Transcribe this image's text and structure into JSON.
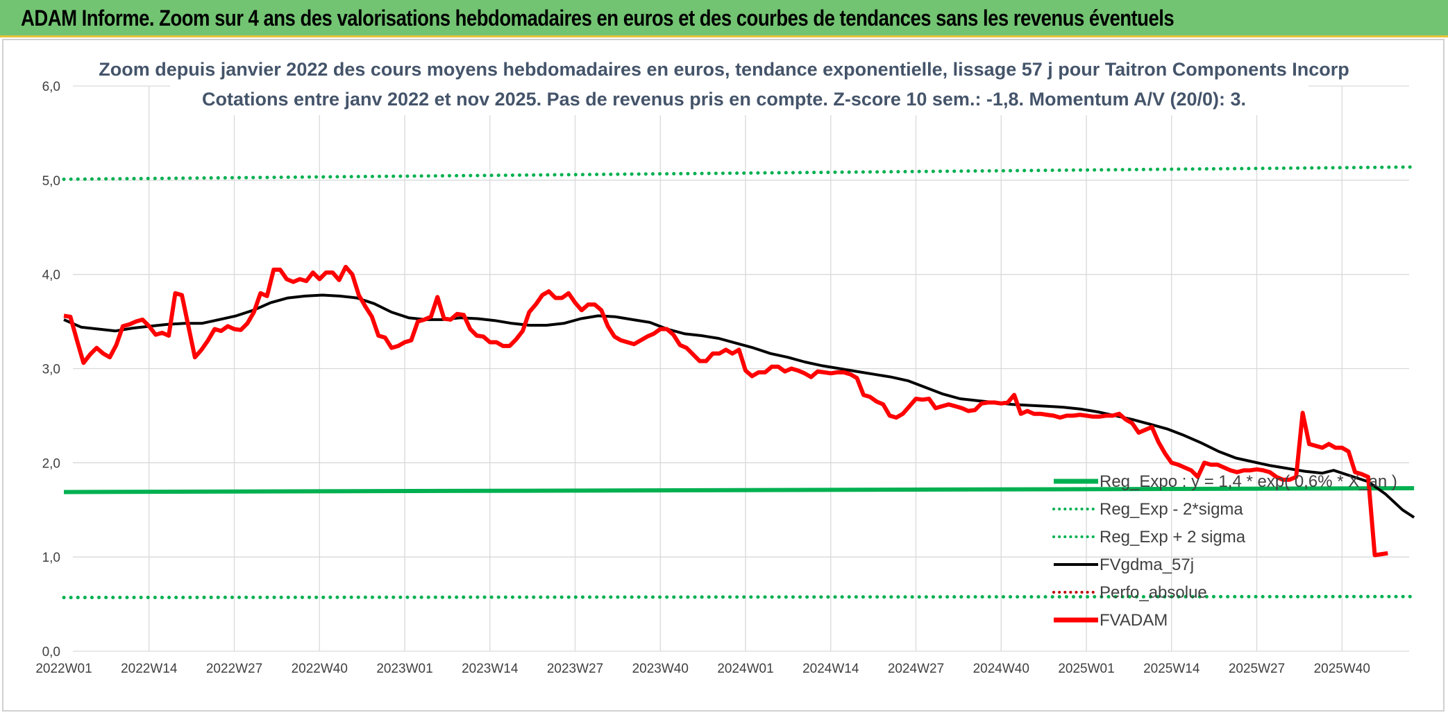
{
  "header": {
    "title": "ADAM Informe. Zoom sur 4 ans des valorisations hebdomadaires en euros et des courbes de tendances sans les revenus éventuels"
  },
  "colors": {
    "banner": "#72c472",
    "reg_expo": "#00b050",
    "sigma": "#00b050",
    "fvgdma": "#000000",
    "fvadam": "#ff0000",
    "perfo": "#c00000",
    "grid": "#d9d9d9"
  },
  "chart_data": {
    "type": "line",
    "title_line1": "Zoom depuis janvier 2022 des cours moyens hebdomadaires en euros, tendance exponentielle, lissage 57 j pour Taitron Components Incorp",
    "title_line2": "Cotations entre janv 2022 et nov 2025. Pas de revenus pris en compte. Z-score 10 sem.: -1,8. Momentum A/V (20/0): 3.",
    "ylim": [
      0,
      6
    ],
    "y_ticks": [
      "0,0",
      "1,0",
      "2,0",
      "3,0",
      "4,0",
      "5,0",
      "6,0"
    ],
    "x_ticks": [
      "2022W01",
      "2022W14",
      "2022W27",
      "2022W40",
      "2023W01",
      "2023W14",
      "2023W27",
      "2023W40",
      "2024W01",
      "2024W14",
      "2024W27",
      "2024W40",
      "2025W01",
      "2025W14",
      "2025W27",
      "2025W40"
    ],
    "weeks_total": 206,
    "legend": [
      {
        "name": "Reg_Expo : y = 1,4 * exp( 0,6% * X_an )",
        "style": "solid-thick",
        "color": "#00b050"
      },
      {
        "name": "Reg_Exp - 2*sigma",
        "style": "dotted",
        "color": "#00b050"
      },
      {
        "name": "Reg_Exp + 2 sigma",
        "style": "dotted",
        "color": "#00b050"
      },
      {
        "name": "FVgdma_57j",
        "style": "solid",
        "color": "#000000"
      },
      {
        "name": "Perfo_absolue",
        "style": "dotted",
        "color": "#c00000"
      },
      {
        "name": "FVADAM",
        "style": "solid-thick",
        "color": "#ff0000"
      }
    ],
    "series": {
      "reg_expo": {
        "start": 1.69,
        "end": 1.73
      },
      "reg_minus_2sigma": {
        "start": 0.57,
        "end": 0.58
      },
      "reg_plus_2sigma": {
        "start": 5.01,
        "end": 5.14
      },
      "fvgdma_57j": [
        [
          0,
          3.52
        ],
        [
          3,
          3.44
        ],
        [
          6,
          3.42
        ],
        [
          9,
          3.4
        ],
        [
          12,
          3.43
        ],
        [
          15,
          3.45
        ],
        [
          18,
          3.47
        ],
        [
          21,
          3.48
        ],
        [
          24,
          3.48
        ],
        [
          27,
          3.52
        ],
        [
          30,
          3.56
        ],
        [
          33,
          3.62
        ],
        [
          36,
          3.7
        ],
        [
          39,
          3.75
        ],
        [
          42,
          3.77
        ],
        [
          45,
          3.78
        ],
        [
          48,
          3.77
        ],
        [
          51,
          3.75
        ],
        [
          54,
          3.69
        ],
        [
          57,
          3.6
        ],
        [
          60,
          3.54
        ],
        [
          63,
          3.52
        ],
        [
          66,
          3.52
        ],
        [
          69,
          3.54
        ],
        [
          72,
          3.53
        ],
        [
          75,
          3.51
        ],
        [
          78,
          3.48
        ],
        [
          81,
          3.46
        ],
        [
          84,
          3.46
        ],
        [
          87,
          3.48
        ],
        [
          90,
          3.53
        ],
        [
          93,
          3.56
        ],
        [
          96,
          3.55
        ],
        [
          99,
          3.52
        ],
        [
          102,
          3.49
        ],
        [
          105,
          3.42
        ],
        [
          108,
          3.37
        ],
        [
          111,
          3.35
        ],
        [
          114,
          3.32
        ],
        [
          117,
          3.27
        ],
        [
          120,
          3.22
        ],
        [
          123,
          3.16
        ],
        [
          126,
          3.12
        ],
        [
          129,
          3.07
        ],
        [
          132,
          3.03
        ],
        [
          135,
          3.0
        ],
        [
          138,
          2.97
        ],
        [
          141,
          2.94
        ],
        [
          144,
          2.91
        ],
        [
          147,
          2.87
        ],
        [
          150,
          2.8
        ],
        [
          153,
          2.73
        ],
        [
          156,
          2.68
        ],
        [
          159,
          2.66
        ],
        [
          162,
          2.64
        ],
        [
          165,
          2.62
        ],
        [
          168,
          2.61
        ],
        [
          171,
          2.6
        ],
        [
          174,
          2.59
        ],
        [
          177,
          2.57
        ],
        [
          180,
          2.54
        ],
        [
          183,
          2.5
        ],
        [
          186,
          2.46
        ],
        [
          189,
          2.41
        ],
        [
          192,
          2.36
        ],
        [
          195,
          2.29
        ],
        [
          198,
          2.21
        ],
        [
          201,
          2.12
        ],
        [
          204,
          2.05
        ],
        [
          207,
          2.01
        ],
        [
          210,
          1.97
        ],
        [
          213,
          1.94
        ],
        [
          216,
          1.91
        ],
        [
          219,
          1.89
        ],
        [
          221,
          1.92
        ],
        [
          224,
          1.86
        ],
        [
          227,
          1.8
        ],
        [
          230,
          1.67
        ],
        [
          233,
          1.5
        ],
        [
          235,
          1.42
        ]
      ],
      "fvadam": [
        [
          0,
          3.56
        ],
        [
          1,
          3.55
        ],
        [
          2,
          3.3
        ],
        [
          3,
          3.06
        ],
        [
          4,
          3.15
        ],
        [
          5,
          3.22
        ],
        [
          6,
          3.16
        ],
        [
          7,
          3.12
        ],
        [
          8,
          3.25
        ],
        [
          9,
          3.45
        ],
        [
          10,
          3.47
        ],
        [
          11,
          3.5
        ],
        [
          12,
          3.52
        ],
        [
          13,
          3.45
        ],
        [
          14,
          3.36
        ],
        [
          15,
          3.38
        ],
        [
          16,
          3.35
        ],
        [
          17,
          3.8
        ],
        [
          18,
          3.78
        ],
        [
          19,
          3.45
        ],
        [
          20,
          3.12
        ],
        [
          21,
          3.2
        ],
        [
          22,
          3.3
        ],
        [
          23,
          3.42
        ],
        [
          24,
          3.4
        ],
        [
          25,
          3.45
        ],
        [
          26,
          3.42
        ],
        [
          27,
          3.41
        ],
        [
          28,
          3.48
        ],
        [
          29,
          3.6
        ],
        [
          30,
          3.8
        ],
        [
          31,
          3.77
        ],
        [
          32,
          4.05
        ],
        [
          33,
          4.05
        ],
        [
          34,
          3.95
        ],
        [
          35,
          3.92
        ],
        [
          36,
          3.95
        ],
        [
          37,
          3.93
        ],
        [
          38,
          4.02
        ],
        [
          39,
          3.95
        ],
        [
          40,
          4.02
        ],
        [
          41,
          4.02
        ],
        [
          42,
          3.94
        ],
        [
          43,
          4.08
        ],
        [
          44,
          4.0
        ],
        [
          45,
          3.78
        ],
        [
          46,
          3.66
        ],
        [
          47,
          3.55
        ],
        [
          48,
          3.35
        ],
        [
          49,
          3.33
        ],
        [
          50,
          3.22
        ],
        [
          51,
          3.24
        ],
        [
          52,
          3.28
        ],
        [
          53,
          3.3
        ],
        [
          54,
          3.5
        ],
        [
          55,
          3.52
        ],
        [
          56,
          3.55
        ],
        [
          57,
          3.76
        ],
        [
          58,
          3.53
        ],
        [
          59,
          3.52
        ],
        [
          60,
          3.58
        ],
        [
          61,
          3.57
        ],
        [
          62,
          3.42
        ],
        [
          63,
          3.35
        ],
        [
          64,
          3.34
        ],
        [
          65,
          3.28
        ],
        [
          66,
          3.28
        ],
        [
          67,
          3.24
        ],
        [
          68,
          3.24
        ],
        [
          69,
          3.31
        ],
        [
          70,
          3.4
        ],
        [
          71,
          3.6
        ],
        [
          72,
          3.68
        ],
        [
          73,
          3.78
        ],
        [
          74,
          3.82
        ],
        [
          75,
          3.75
        ],
        [
          76,
          3.75
        ],
        [
          77,
          3.8
        ],
        [
          78,
          3.7
        ],
        [
          79,
          3.62
        ],
        [
          80,
          3.68
        ],
        [
          81,
          3.68
        ],
        [
          82,
          3.62
        ],
        [
          83,
          3.45
        ],
        [
          84,
          3.34
        ],
        [
          85,
          3.3
        ],
        [
          86,
          3.28
        ],
        [
          87,
          3.26
        ],
        [
          88,
          3.3
        ],
        [
          89,
          3.34
        ],
        [
          90,
          3.37
        ],
        [
          91,
          3.42
        ],
        [
          92,
          3.42
        ],
        [
          93,
          3.36
        ],
        [
          94,
          3.25
        ],
        [
          95,
          3.22
        ],
        [
          96,
          3.15
        ],
        [
          97,
          3.08
        ],
        [
          98,
          3.08
        ],
        [
          99,
          3.16
        ],
        [
          100,
          3.16
        ],
        [
          101,
          3.2
        ],
        [
          102,
          3.16
        ],
        [
          103,
          3.2
        ],
        [
          104,
          2.98
        ],
        [
          105,
          2.92
        ],
        [
          106,
          2.96
        ],
        [
          107,
          2.96
        ],
        [
          108,
          3.02
        ],
        [
          109,
          3.02
        ],
        [
          110,
          2.97
        ],
        [
          111,
          3.0
        ],
        [
          112,
          2.98
        ],
        [
          113,
          2.95
        ],
        [
          114,
          2.91
        ],
        [
          115,
          2.97
        ],
        [
          116,
          2.96
        ],
        [
          117,
          2.95
        ],
        [
          118,
          2.96
        ],
        [
          119,
          2.96
        ],
        [
          120,
          2.94
        ],
        [
          121,
          2.9
        ],
        [
          122,
          2.72
        ],
        [
          123,
          2.7
        ],
        [
          124,
          2.65
        ],
        [
          125,
          2.62
        ],
        [
          126,
          2.5
        ],
        [
          127,
          2.48
        ],
        [
          128,
          2.52
        ],
        [
          129,
          2.6
        ],
        [
          130,
          2.68
        ],
        [
          131,
          2.67
        ],
        [
          132,
          2.68
        ],
        [
          133,
          2.58
        ],
        [
          134,
          2.6
        ],
        [
          135,
          2.62
        ],
        [
          136,
          2.6
        ],
        [
          137,
          2.58
        ],
        [
          138,
          2.55
        ],
        [
          139,
          2.56
        ],
        [
          140,
          2.63
        ],
        [
          141,
          2.64
        ],
        [
          142,
          2.64
        ],
        [
          143,
          2.63
        ],
        [
          144,
          2.64
        ],
        [
          145,
          2.72
        ],
        [
          146,
          2.52
        ],
        [
          147,
          2.55
        ],
        [
          148,
          2.52
        ],
        [
          149,
          2.52
        ],
        [
          150,
          2.51
        ],
        [
          151,
          2.5
        ],
        [
          152,
          2.48
        ],
        [
          153,
          2.5
        ],
        [
          154,
          2.5
        ],
        [
          155,
          2.51
        ],
        [
          156,
          2.5
        ],
        [
          157,
          2.49
        ],
        [
          158,
          2.49
        ],
        [
          159,
          2.5
        ],
        [
          160,
          2.5
        ],
        [
          161,
          2.52
        ],
        [
          162,
          2.46
        ],
        [
          163,
          2.42
        ],
        [
          164,
          2.32
        ],
        [
          165,
          2.35
        ],
        [
          166,
          2.38
        ],
        [
          167,
          2.22
        ],
        [
          168,
          2.1
        ],
        [
          169,
          2.0
        ],
        [
          170,
          1.98
        ],
        [
          171,
          1.95
        ],
        [
          172,
          1.92
        ],
        [
          173,
          1.85
        ],
        [
          174,
          2.0
        ],
        [
          175,
          1.98
        ],
        [
          176,
          1.98
        ],
        [
          177,
          1.95
        ],
        [
          178,
          1.92
        ],
        [
          179,
          1.9
        ],
        [
          180,
          1.92
        ],
        [
          181,
          1.92
        ],
        [
          182,
          1.93
        ],
        [
          183,
          1.92
        ],
        [
          184,
          1.9
        ],
        [
          185,
          1.85
        ],
        [
          186,
          1.82
        ],
        [
          187,
          1.82
        ],
        [
          188,
          1.85
        ],
        [
          189,
          2.53
        ],
        [
          190,
          2.2
        ],
        [
          191,
          2.18
        ],
        [
          192,
          2.16
        ],
        [
          193,
          2.2
        ],
        [
          194,
          2.16
        ],
        [
          195,
          2.16
        ],
        [
          196,
          2.12
        ],
        [
          197,
          1.9
        ],
        [
          198,
          1.88
        ],
        [
          199,
          1.85
        ],
        [
          200,
          1.02
        ],
        [
          201,
          1.03
        ],
        [
          202,
          1.04
        ]
      ]
    }
  }
}
